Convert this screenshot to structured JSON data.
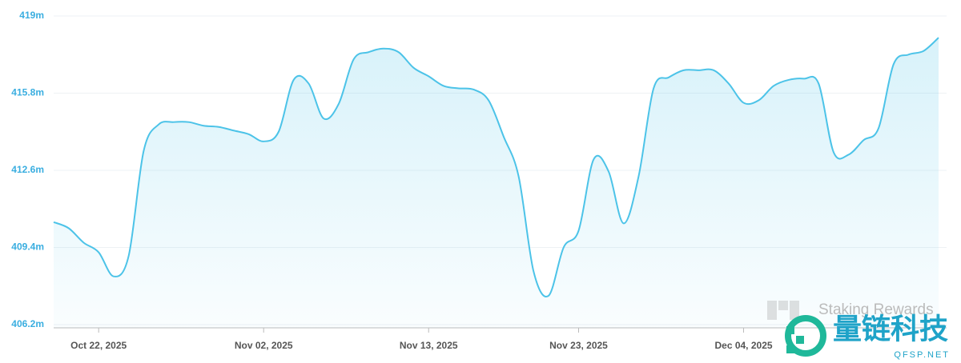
{
  "chart_data": {
    "type": "area",
    "x": [
      "2025-10-19",
      "2025-10-20",
      "2025-10-21",
      "2025-10-22",
      "2025-10-23",
      "2025-10-24",
      "2025-10-25",
      "2025-10-26",
      "2025-10-27",
      "2025-10-28",
      "2025-10-29",
      "2025-10-30",
      "2025-10-31",
      "2025-11-01",
      "2025-11-02",
      "2025-11-03",
      "2025-11-04",
      "2025-11-05",
      "2025-11-06",
      "2025-11-07",
      "2025-11-08",
      "2025-11-09",
      "2025-11-10",
      "2025-11-11",
      "2025-11-12",
      "2025-11-13",
      "2025-11-14",
      "2025-11-15",
      "2025-11-16",
      "2025-11-17",
      "2025-11-18",
      "2025-11-19",
      "2025-11-20",
      "2025-11-21",
      "2025-11-22",
      "2025-11-23",
      "2025-11-24",
      "2025-11-25",
      "2025-11-26",
      "2025-11-27",
      "2025-11-28",
      "2025-11-29",
      "2025-11-30",
      "2025-12-01",
      "2025-12-02",
      "2025-12-03",
      "2025-12-04",
      "2025-12-05",
      "2025-12-06",
      "2025-12-07",
      "2025-12-08",
      "2025-12-09",
      "2025-12-10",
      "2025-12-11",
      "2025-12-12",
      "2025-12-13",
      "2025-12-14",
      "2025-12-15",
      "2025-12-16",
      "2025-12-17"
    ],
    "values": [
      410.45,
      410.2,
      409.6,
      409.2,
      408.2,
      409.05,
      413.4,
      414.5,
      414.6,
      414.6,
      414.45,
      414.4,
      414.25,
      414.1,
      413.8,
      414.2,
      416.35,
      416.2,
      414.75,
      415.35,
      417.2,
      417.5,
      417.65,
      417.5,
      416.85,
      416.5,
      416.1,
      416.0,
      415.95,
      415.5,
      414.0,
      412.35,
      408.4,
      407.4,
      409.4,
      410.1,
      413.05,
      412.55,
      410.4,
      412.35,
      416.0,
      416.45,
      416.75,
      416.75,
      416.75,
      416.2,
      415.4,
      415.5,
      416.1,
      416.35,
      416.4,
      416.2,
      413.35,
      413.25,
      413.85,
      414.35,
      417.0,
      417.4,
      417.55,
      418.1
    ],
    "color": "#4cc3e8",
    "xlim": [
      "2025-10-19",
      "2025-12-17"
    ],
    "xticks": [
      {
        "value": "2025-10-22",
        "label": "Oct 22, 2025"
      },
      {
        "value": "2025-11-02",
        "label": "Nov 02, 2025"
      },
      {
        "value": "2025-11-13",
        "label": "Nov 13, 2025"
      },
      {
        "value": "2025-11-23",
        "label": "Nov 23, 2025"
      },
      {
        "value": "2025-12-04",
        "label": "Dec 04, 2025"
      }
    ],
    "ylim": [
      406.2,
      419
    ],
    "yticks": [
      {
        "value": 406.2,
        "label": "406.2m"
      },
      {
        "value": 409.4,
        "label": "409.4m"
      },
      {
        "value": 412.6,
        "label": "412.6m"
      },
      {
        "value": 415.8,
        "label": "415.8m"
      },
      {
        "value": 419,
        "label": "419m"
      }
    ],
    "grid": true,
    "watermarks": [
      "Staking Rewards",
      "量链科技",
      "QFSP.NET"
    ]
  }
}
